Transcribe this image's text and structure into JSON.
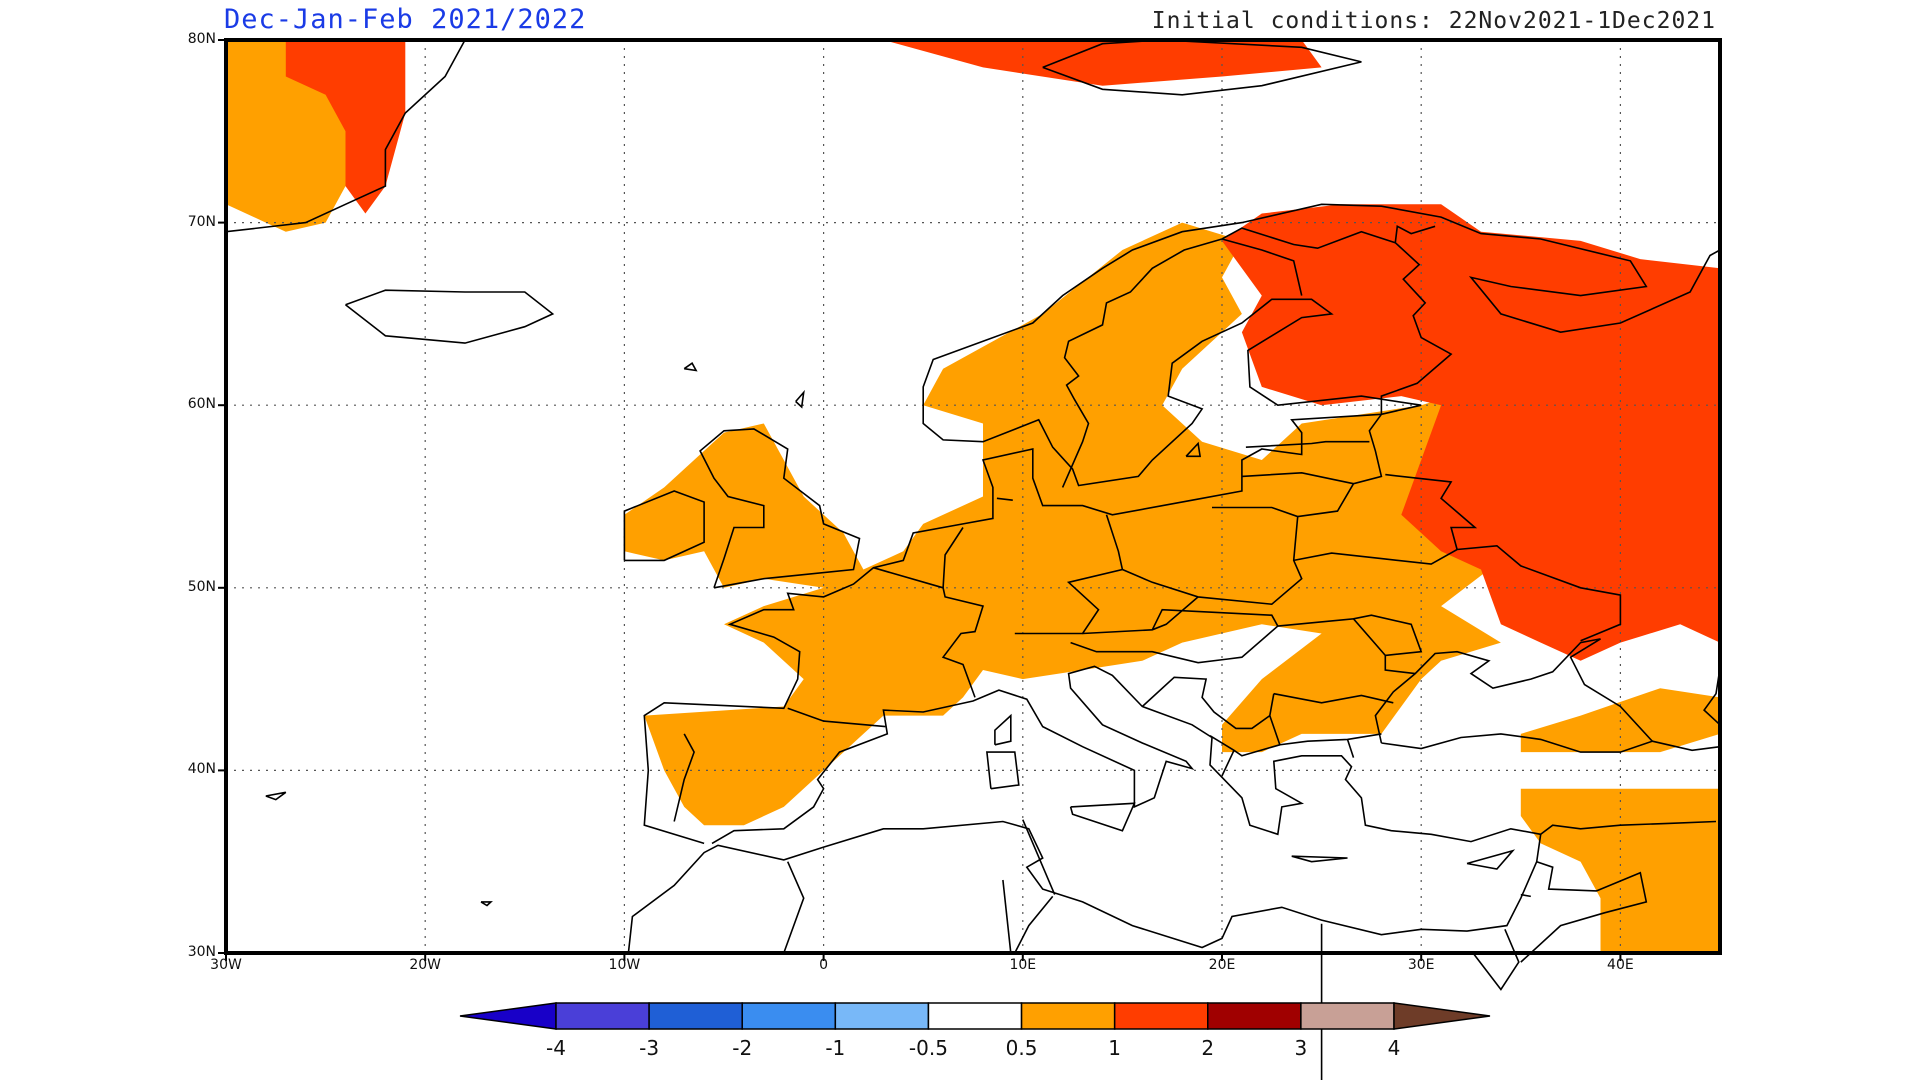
{
  "title": "Dec-Jan-Feb 2021/2022",
  "initial_conditions": "Initial conditions: 22Nov2021-1Dec2021",
  "map": {
    "extent": {
      "lon_min": -30,
      "lon_max": 45,
      "lat_min": 30,
      "lat_max": 80
    },
    "lat_ticks": [
      {
        "lat": 80,
        "label": "80N"
      },
      {
        "lat": 70,
        "label": "70N"
      },
      {
        "lat": 60,
        "label": "60N"
      },
      {
        "lat": 50,
        "label": "50N"
      },
      {
        "lat": 40,
        "label": "40N"
      },
      {
        "lat": 30,
        "label": "30N"
      }
    ],
    "lon_ticks": [
      {
        "lon": -30,
        "label": "30W"
      },
      {
        "lon": -20,
        "label": "20W"
      },
      {
        "lon": -10,
        "label": "10W"
      },
      {
        "lon": 0,
        "label": "0"
      },
      {
        "lon": 10,
        "label": "10E"
      },
      {
        "lon": 20,
        "label": "20E"
      },
      {
        "lon": 30,
        "label": "30E"
      },
      {
        "lon": 40,
        "label": "40E"
      }
    ],
    "grid": "dotted",
    "colors": {
      "warm_0_5_1": "#ffa000",
      "warm_1_2": "#ff3d00",
      "coastline": "#000000"
    }
  },
  "colorbar": {
    "colors": [
      "#1800c8",
      "#4a3fd8",
      "#1f5fd6",
      "#3a8df0",
      "#78b8f8",
      "#ffffff",
      "#ffa000",
      "#ff3d00",
      "#a00000",
      "#c8a096",
      "#6e3c28"
    ],
    "labels": [
      "-4",
      "-3",
      "-2",
      "-1",
      "-0.5",
      "0.5",
      "1",
      "2",
      "3",
      "4"
    ]
  }
}
